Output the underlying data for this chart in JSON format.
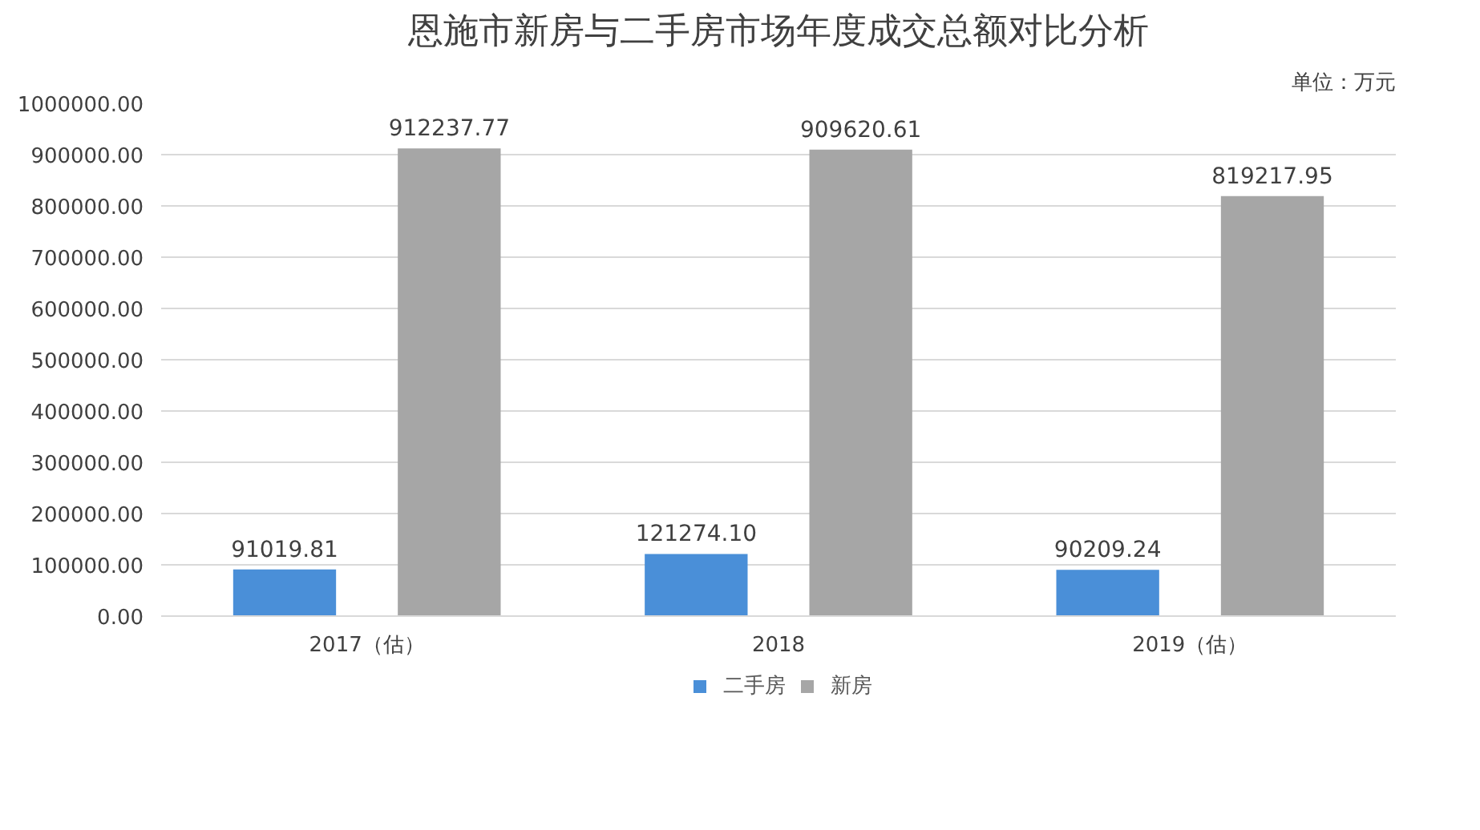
{
  "chart_data": {
    "type": "bar",
    "title": "恩施市新房与二手房市场年度成交总额对比分析",
    "annotations": [
      "单位：万元"
    ],
    "categories": [
      "2017（估）",
      "2018",
      "2019（估）"
    ],
    "series": [
      {
        "name": "二手房",
        "color": "#4a8fd8",
        "values": [
          91019.81,
          121274.1,
          90209.24
        ],
        "value_labels": [
          "91019.81",
          "121274.10",
          "90209.24"
        ]
      },
      {
        "name": "新房",
        "color": "#a6a6a6",
        "values": [
          912237.77,
          909620.61,
          819217.95
        ],
        "value_labels": [
          "912237.77",
          "909620.61",
          "819217.95"
        ]
      }
    ],
    "ylim": [
      0,
      1000000
    ],
    "yticks": [
      {
        "value": 0,
        "label": "0.00"
      },
      {
        "value": 100000,
        "label": "100000.00"
      },
      {
        "value": 200000,
        "label": "200000.00"
      },
      {
        "value": 300000,
        "label": "300000.00"
      },
      {
        "value": 400000,
        "label": "400000.00"
      },
      {
        "value": 500000,
        "label": "500000.00"
      },
      {
        "value": 600000,
        "label": "600000.00"
      },
      {
        "value": 700000,
        "label": "700000.00"
      },
      {
        "value": 800000,
        "label": "800000.00"
      },
      {
        "value": 900000,
        "label": "900000.00"
      },
      {
        "value": 1000000,
        "label": "1000000.00"
      }
    ],
    "grid": "y",
    "legend": "bottom"
  }
}
